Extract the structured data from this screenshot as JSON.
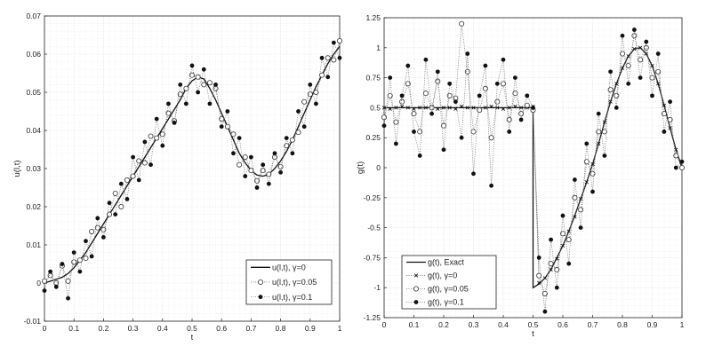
{
  "chart_data": [
    {
      "type": "line",
      "xlabel": "t",
      "ylabel": "u(l,t)",
      "xlim": [
        0,
        1
      ],
      "ylim": [
        -0.01,
        0.07
      ],
      "xticks": [
        "0",
        "0.1",
        "0.2",
        "0.3",
        "0.4",
        "0.5",
        "0.6",
        "0.7",
        "0.8",
        "0.9",
        "1"
      ],
      "yticks": [
        "-0.01",
        "0",
        "0.01",
        "0.02",
        "0.03",
        "0.04",
        "0.05",
        "0.06",
        "0.07"
      ],
      "grid": true,
      "legend_position": "bottom-right",
      "x": [
        0,
        0.02,
        0.04,
        0.06,
        0.08,
        0.1,
        0.12,
        0.14,
        0.16,
        0.18,
        0.2,
        0.22,
        0.24,
        0.26,
        0.28,
        0.3,
        0.32,
        0.34,
        0.36,
        0.38,
        0.4,
        0.42,
        0.44,
        0.46,
        0.48,
        0.5,
        0.52,
        0.54,
        0.56,
        0.58,
        0.6,
        0.62,
        0.64,
        0.66,
        0.68,
        0.7,
        0.72,
        0.74,
        0.76,
        0.78,
        0.8,
        0.82,
        0.84,
        0.86,
        0.88,
        0.9,
        0.92,
        0.94,
        0.96,
        0.98,
        1
      ],
      "series": [
        {
          "name": "u(l,t), γ=0",
          "style": "solid",
          "marker": "none",
          "values": [
            0,
            0.0005,
            0.001,
            0.0015,
            0.0025,
            0.004,
            0.006,
            0.008,
            0.0105,
            0.013,
            0.0155,
            0.018,
            0.0205,
            0.023,
            0.0255,
            0.028,
            0.0305,
            0.033,
            0.0355,
            0.038,
            0.0405,
            0.043,
            0.0455,
            0.048,
            0.051,
            0.053,
            0.054,
            0.0535,
            0.051,
            0.048,
            0.0445,
            0.041,
            0.0375,
            0.034,
            0.0315,
            0.0295,
            0.0283,
            0.028,
            0.0285,
            0.03,
            0.032,
            0.0345,
            0.0375,
            0.041,
            0.0445,
            0.048,
            0.0515,
            0.0545,
            0.0575,
            0.06,
            0.062
          ]
        },
        {
          "name": "u(l,t), γ=0.05",
          "style": "dotted",
          "marker": "open-circle",
          "values": [
            0.0005,
            0.002,
            0.0,
            0.0045,
            0.0005,
            0.0055,
            0.006,
            0.0065,
            0.0135,
            0.0145,
            0.014,
            0.018,
            0.0235,
            0.02,
            0.027,
            0.028,
            0.032,
            0.0315,
            0.0385,
            0.038,
            0.039,
            0.0445,
            0.0425,
            0.0495,
            0.051,
            0.0545,
            0.054,
            0.052,
            0.0525,
            0.051,
            0.043,
            0.041,
            0.039,
            0.031,
            0.033,
            0.0295,
            0.0268,
            0.0295,
            0.0285,
            0.033,
            0.0305,
            0.036,
            0.0375,
            0.0395,
            0.0475,
            0.0495,
            0.05,
            0.0545,
            0.059,
            0.0585,
            0.0635
          ]
        },
        {
          "name": "u(l,t), γ=0.1",
          "style": "dotted",
          "marker": "filled-circle",
          "values": [
            -0.002,
            0.003,
            -0.001,
            0.005,
            -0.004,
            0.008,
            0.003,
            0.011,
            0.007,
            0.017,
            0.012,
            0.021,
            0.018,
            0.026,
            0.022,
            0.033,
            0.027,
            0.037,
            0.031,
            0.043,
            0.036,
            0.047,
            0.042,
            0.052,
            0.047,
            0.057,
            0.05,
            0.056,
            0.047,
            0.052,
            0.041,
            0.045,
            0.034,
            0.038,
            0.028,
            0.033,
            0.025,
            0.031,
            0.026,
            0.034,
            0.029,
            0.038,
            0.034,
            0.045,
            0.041,
            0.052,
            0.047,
            0.059,
            0.054,
            0.063,
            0.059
          ]
        }
      ]
    },
    {
      "type": "line",
      "xlabel": "t",
      "ylabel": "g(t)",
      "xlim": [
        0,
        1
      ],
      "ylim": [
        -1.25,
        1.25
      ],
      "xticks": [
        "0",
        "0.1",
        "0.2",
        "0.3",
        "0.4",
        "0.5",
        "0.6",
        "0.7",
        "0.8",
        "0.9",
        "1"
      ],
      "yticks": [
        "-1.25",
        "-1",
        "-0.75",
        "-0.5",
        "-0.25",
        "0",
        "0.25",
        "0.5",
        "0.75",
        "1",
        "1.25"
      ],
      "grid": true,
      "legend_position": "bottom-left",
      "x": [
        0,
        0.02,
        0.04,
        0.06,
        0.08,
        0.1,
        0.12,
        0.14,
        0.16,
        0.18,
        0.2,
        0.22,
        0.24,
        0.26,
        0.28,
        0.3,
        0.32,
        0.34,
        0.36,
        0.38,
        0.4,
        0.42,
        0.44,
        0.46,
        0.48,
        0.5,
        0.52,
        0.54,
        0.56,
        0.58,
        0.6,
        0.62,
        0.64,
        0.66,
        0.68,
        0.7,
        0.72,
        0.74,
        0.76,
        0.78,
        0.8,
        0.82,
        0.84,
        0.86,
        0.88,
        0.9,
        0.92,
        0.94,
        0.96,
        0.98,
        1
      ],
      "series": [
        {
          "name": "g(t), Exact",
          "style": "solid",
          "marker": "none",
          "x": [
            0,
            0.5,
            0.5,
            0.52,
            0.54,
            0.56,
            0.58,
            0.6,
            0.62,
            0.64,
            0.66,
            0.68,
            0.7,
            0.72,
            0.74,
            0.76,
            0.78,
            0.8,
            0.82,
            0.84,
            0.86,
            0.88,
            0.9,
            0.92,
            0.94,
            0.96,
            0.98,
            1
          ],
          "values": [
            0.5,
            0.5,
            -1,
            -0.97,
            -0.92,
            -0.85,
            -0.75,
            -0.65,
            -0.53,
            -0.4,
            -0.26,
            -0.12,
            0.03,
            0.2,
            0.38,
            0.55,
            0.7,
            0.83,
            0.93,
            0.99,
            1.0,
            0.95,
            0.85,
            0.7,
            0.52,
            0.33,
            0.15,
            0.0
          ]
        },
        {
          "name": "g(t), γ=0",
          "style": "dotted",
          "marker": "cross",
          "values": [
            0.5,
            0.49,
            0.5,
            0.51,
            0.5,
            0.49,
            0.5,
            0.5,
            0.51,
            0.49,
            0.5,
            0.5,
            0.49,
            0.51,
            0.5,
            0.5,
            0.49,
            0.5,
            0.51,
            0.5,
            0.49,
            0.5,
            0.51,
            0.5,
            0.5,
            0.51,
            -0.96,
            -0.92,
            -0.85,
            -0.76,
            -0.65,
            -0.53,
            -0.41,
            -0.26,
            -0.12,
            0.03,
            0.2,
            0.38,
            0.55,
            0.7,
            0.83,
            0.93,
            0.99,
            1.0,
            0.95,
            0.85,
            0.7,
            0.52,
            0.33,
            0.15,
            0.0
          ]
        },
        {
          "name": "g(t), γ=0.05",
          "style": "dotted",
          "marker": "open-circle",
          "values": [
            0.42,
            0.6,
            0.38,
            0.55,
            0.7,
            0.45,
            0.3,
            0.62,
            0.5,
            0.72,
            0.35,
            0.6,
            0.58,
            1.2,
            0.8,
            0.3,
            0.48,
            0.66,
            0.25,
            0.55,
            0.7,
            0.4,
            0.62,
            0.45,
            0.52,
            0.48,
            -0.9,
            -1.05,
            -0.8,
            -0.85,
            -0.55,
            -0.6,
            -0.25,
            -0.35,
            0.05,
            -0.05,
            0.3,
            0.3,
            0.65,
            0.6,
            0.95,
            0.85,
            1.1,
            0.9,
            1.0,
            0.75,
            0.8,
            0.45,
            0.4,
            0.1,
            0.0
          ]
        },
        {
          "name": "g(t), γ=0.1",
          "style": "dotted",
          "marker": "filled-circle",
          "values": [
            0.35,
            0.75,
            0.2,
            0.6,
            0.85,
            0.3,
            0.1,
            0.9,
            0.45,
            0.8,
            0.15,
            0.7,
            0.55,
            0.25,
            0.95,
            -0.05,
            0.6,
            0.85,
            -0.15,
            0.7,
            0.9,
            0.3,
            0.75,
            0.4,
            0.6,
            0.5,
            -0.75,
            -1.2,
            -0.6,
            -1.0,
            -0.4,
            -0.8,
            -0.1,
            -0.5,
            0.2,
            -0.2,
            0.45,
            0.1,
            0.8,
            0.5,
            1.1,
            0.7,
            1.15,
            0.75,
            1.05,
            0.6,
            0.95,
            0.3,
            0.55,
            0.0,
            0.05
          ]
        }
      ]
    }
  ]
}
